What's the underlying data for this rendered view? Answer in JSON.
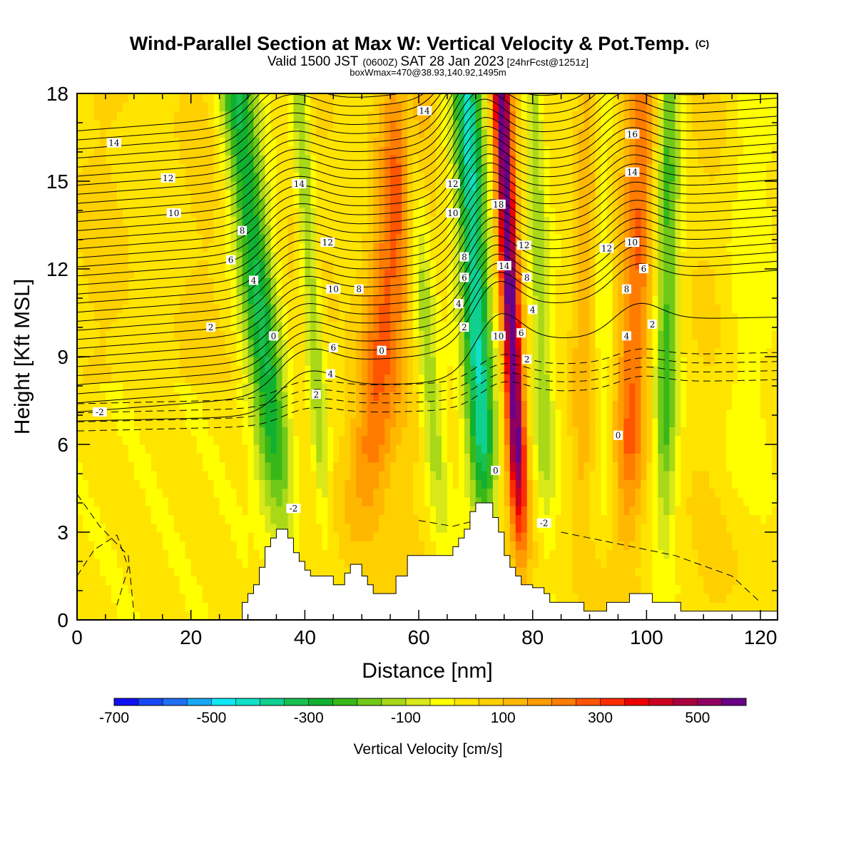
{
  "header": {
    "title": "Wind-Parallel Section at Max W: Vertical Velocity & Pot.Temp.",
    "title_mark": "(C)",
    "valid_prefix": "Valid 1500 JST",
    "valid_zulu": "(0600Z)",
    "valid_date": "SAT 28 Jan 2023",
    "forecast": "[24hrFcst@1251z]",
    "box_info": "boxWmax=470@38.93,140.92,1495m"
  },
  "chart_data": {
    "type": "heatmap",
    "xlabel": "Distance [nm]",
    "ylabel": "Height [Kft MSL]",
    "xlim": [
      0,
      123
    ],
    "ylim": [
      0,
      18
    ],
    "x_ticks": [
      0,
      20,
      40,
      60,
      80,
      100,
      120
    ],
    "y_ticks": [
      0,
      3,
      6,
      9,
      12,
      15,
      18
    ],
    "field": "Vertical Velocity [cm/s]",
    "contour_field": "Pot.Temp. (C)",
    "colorbar": {
      "label": "Vertical Velocity [cm/s]",
      "min": -700,
      "max": 600,
      "step": 50,
      "tick_labels": [
        "-700",
        "-500",
        "-300",
        "-100",
        "100",
        "300",
        "500"
      ],
      "tick_values": [
        -700,
        -500,
        -300,
        -100,
        100,
        300,
        500
      ],
      "colors": [
        "#1010f0",
        "#1848f5",
        "#2070f5",
        "#18a8f8",
        "#10e8f8",
        "#10e0c8",
        "#10d090",
        "#18c050",
        "#10b030",
        "#38b818",
        "#70c818",
        "#a8d818",
        "#d8e818",
        "#ffff00",
        "#ffe400",
        "#ffd000",
        "#ffb800",
        "#ff9c00",
        "#ff7c00",
        "#ff5400",
        "#ff2c00",
        "#ee0000",
        "#cc0020",
        "#aa0040",
        "#900060",
        "#6a0088"
      ]
    },
    "velocity_bands": [
      {
        "x0": 38,
        "x1": 28,
        "w": 3.2,
        "value": -320
      },
      {
        "x0": 44.5,
        "x1": 39,
        "w": 1.6,
        "value": -200
      },
      {
        "x0": 48.5,
        "x1": 58,
        "w": 4.0,
        "value": 220
      },
      {
        "x0": 65,
        "x1": 58,
        "w": 2.0,
        "value": -180
      },
      {
        "x0": 72.5,
        "x1": 68.5,
        "w": 2.6,
        "value": -420
      },
      {
        "x0": 78.5,
        "x1": 74.5,
        "w": 1.5,
        "value": 560
      },
      {
        "x0": 83,
        "x1": 80,
        "w": 1.8,
        "value": -170
      },
      {
        "x0": 88,
        "x1": 90,
        "w": 2.2,
        "value": 110
      },
      {
        "x0": 93,
        "x1": 92,
        "w": 2.0,
        "value": -110
      },
      {
        "x0": 96,
        "x1": 99.5,
        "w": 2.8,
        "value": 200
      },
      {
        "x0": 103,
        "x1": 104,
        "w": 2.0,
        "value": -230
      },
      {
        "x0": 115,
        "x1": 118,
        "w": 4.5,
        "value": -60
      }
    ],
    "terrain": [
      [
        0,
        0
      ],
      [
        29,
        0
      ],
      [
        29,
        0.6
      ],
      [
        30,
        0.6
      ],
      [
        30,
        0.9
      ],
      [
        31,
        0.9
      ],
      [
        31,
        1.2
      ],
      [
        32,
        1.2
      ],
      [
        32,
        1.8
      ],
      [
        33,
        1.8
      ],
      [
        33,
        2.5
      ],
      [
        34,
        2.5
      ],
      [
        34,
        2.8
      ],
      [
        35,
        2.8
      ],
      [
        35,
        3.1
      ],
      [
        37,
        3.1
      ],
      [
        37,
        2.8
      ],
      [
        38,
        2.8
      ],
      [
        38,
        2.3
      ],
      [
        39,
        2.3
      ],
      [
        39,
        2.0
      ],
      [
        40,
        2.0
      ],
      [
        40,
        1.7
      ],
      [
        41,
        1.7
      ],
      [
        41,
        1.5
      ],
      [
        45,
        1.5
      ],
      [
        45,
        1.2
      ],
      [
        47,
        1.2
      ],
      [
        47,
        1.6
      ],
      [
        48,
        1.6
      ],
      [
        48,
        1.9
      ],
      [
        50,
        1.9
      ],
      [
        50,
        1.5
      ],
      [
        51,
        1.5
      ],
      [
        51,
        1.2
      ],
      [
        52,
        1.2
      ],
      [
        52,
        0.9
      ],
      [
        56,
        0.9
      ],
      [
        56,
        1.5
      ],
      [
        58,
        1.5
      ],
      [
        58,
        2.2
      ],
      [
        66,
        2.2
      ],
      [
        66,
        2.5
      ],
      [
        67,
        2.5
      ],
      [
        67,
        2.8
      ],
      [
        68,
        2.8
      ],
      [
        68,
        3.1
      ],
      [
        69,
        3.1
      ],
      [
        69,
        3.7
      ],
      [
        70,
        3.7
      ],
      [
        70,
        4.0
      ],
      [
        73,
        4.0
      ],
      [
        73,
        3.5
      ],
      [
        74,
        3.5
      ],
      [
        74,
        3.0
      ],
      [
        75,
        3.0
      ],
      [
        75,
        2.2
      ],
      [
        76,
        2.2
      ],
      [
        76,
        1.8
      ],
      [
        77,
        1.8
      ],
      [
        77,
        1.5
      ],
      [
        78,
        1.5
      ],
      [
        78,
        1.2
      ],
      [
        80,
        1.2
      ],
      [
        80,
        1.1
      ],
      [
        82,
        1.1
      ],
      [
        82,
        0.9
      ],
      [
        83,
        0.9
      ],
      [
        83,
        0.6
      ],
      [
        89,
        0.6
      ],
      [
        89,
        0.3
      ],
      [
        93,
        0.3
      ],
      [
        93,
        0.6
      ],
      [
        97,
        0.6
      ],
      [
        97,
        0.9
      ],
      [
        101,
        0.9
      ],
      [
        101,
        0.6
      ],
      [
        106,
        0.6
      ],
      [
        106,
        0.3
      ],
      [
        123,
        0.3
      ],
      [
        123,
        0
      ]
    ],
    "theta_levels": [
      -2,
      0,
      2,
      4,
      6,
      8,
      10,
      12,
      14,
      16
    ],
    "theta_labels": [
      {
        "text": "14",
        "x": 6.5,
        "y": 16.3
      },
      {
        "text": "12",
        "x": 16,
        "y": 15.1
      },
      {
        "text": "10",
        "x": 17,
        "y": 13.9
      },
      {
        "text": "8",
        "x": 29,
        "y": 13.3
      },
      {
        "text": "6",
        "x": 27,
        "y": 12.3
      },
      {
        "text": "4",
        "x": 31,
        "y": 11.6
      },
      {
        "text": "2",
        "x": 23.5,
        "y": 10.0
      },
      {
        "text": "-2",
        "x": 4,
        "y": 7.1
      },
      {
        "text": "0",
        "x": 34.5,
        "y": 9.7
      },
      {
        "text": "14",
        "x": 39,
        "y": 14.9
      },
      {
        "text": "12",
        "x": 44,
        "y": 12.9
      },
      {
        "text": "10",
        "x": 45,
        "y": 11.3
      },
      {
        "text": "8",
        "x": 49.5,
        "y": 11.3
      },
      {
        "text": "6",
        "x": 45,
        "y": 9.3
      },
      {
        "text": "4",
        "x": 44.5,
        "y": 8.4
      },
      {
        "text": "2",
        "x": 42,
        "y": 7.7
      },
      {
        "text": "0",
        "x": 53.5,
        "y": 9.2
      },
      {
        "text": "-2",
        "x": 38,
        "y": 3.8
      },
      {
        "text": "14",
        "x": 61,
        "y": 17.4
      },
      {
        "text": "12",
        "x": 66,
        "y": 14.9
      },
      {
        "text": "10",
        "x": 66,
        "y": 13.9
      },
      {
        "text": "8",
        "x": 68,
        "y": 12.4
      },
      {
        "text": "6",
        "x": 68,
        "y": 11.7
      },
      {
        "text": "4",
        "x": 67,
        "y": 10.8
      },
      {
        "text": "2",
        "x": 68,
        "y": 10.0
      },
      {
        "text": "14",
        "x": 75,
        "y": 12.1
      },
      {
        "text": "18",
        "x": 74,
        "y": 14.2
      },
      {
        "text": "10",
        "x": 74,
        "y": 9.7
      },
      {
        "text": "12",
        "x": 78.5,
        "y": 12.8
      },
      {
        "text": "8",
        "x": 79,
        "y": 11.7
      },
      {
        "text": "4",
        "x": 80,
        "y": 10.6
      },
      {
        "text": "6",
        "x": 78,
        "y": 9.8
      },
      {
        "text": "2",
        "x": 79,
        "y": 8.9
      },
      {
        "text": "0",
        "x": 73.5,
        "y": 5.1
      },
      {
        "text": "-2",
        "x": 82,
        "y": 3.3
      },
      {
        "text": "16",
        "x": 97.5,
        "y": 16.6
      },
      {
        "text": "14",
        "x": 97.5,
        "y": 15.3
      },
      {
        "text": "12",
        "x": 93,
        "y": 12.7
      },
      {
        "text": "10",
        "x": 97.5,
        "y": 12.9
      },
      {
        "text": "8",
        "x": 96.5,
        "y": 11.3
      },
      {
        "text": "6",
        "x": 99.5,
        "y": 12.0
      },
      {
        "text": "4",
        "x": 96.5,
        "y": 9.7
      },
      {
        "text": "2",
        "x": 101,
        "y": 10.1
      },
      {
        "text": "0",
        "x": 95,
        "y": 6.3
      }
    ]
  }
}
